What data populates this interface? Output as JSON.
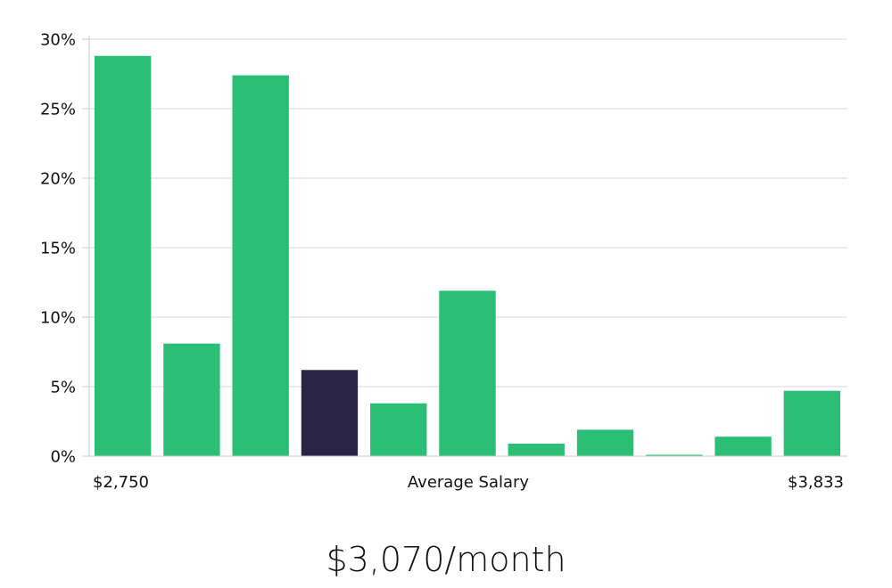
{
  "colors": {
    "bar": "#2bbf76",
    "highlight": "#2a2546",
    "grid": "#d9d9d9",
    "axis": "#cccccc",
    "text": "#111111"
  },
  "chart_data": {
    "type": "bar",
    "xlabel": "Average Salary",
    "x_start_label": "$2,750",
    "x_end_label": "$3,833",
    "ylim": [
      0,
      30
    ],
    "yticks": [
      0,
      5,
      10,
      15,
      20,
      25,
      30
    ],
    "ytick_labels": [
      "0%",
      "5%",
      "10%",
      "15%",
      "20%",
      "25%",
      "30%"
    ],
    "values": [
      28.8,
      8.1,
      27.4,
      6.2,
      3.8,
      11.9,
      0.9,
      1.9,
      0.1,
      1.4,
      4.7
    ],
    "highlight_index": 3,
    "grid": true
  },
  "salary_display": "$3,070/month"
}
